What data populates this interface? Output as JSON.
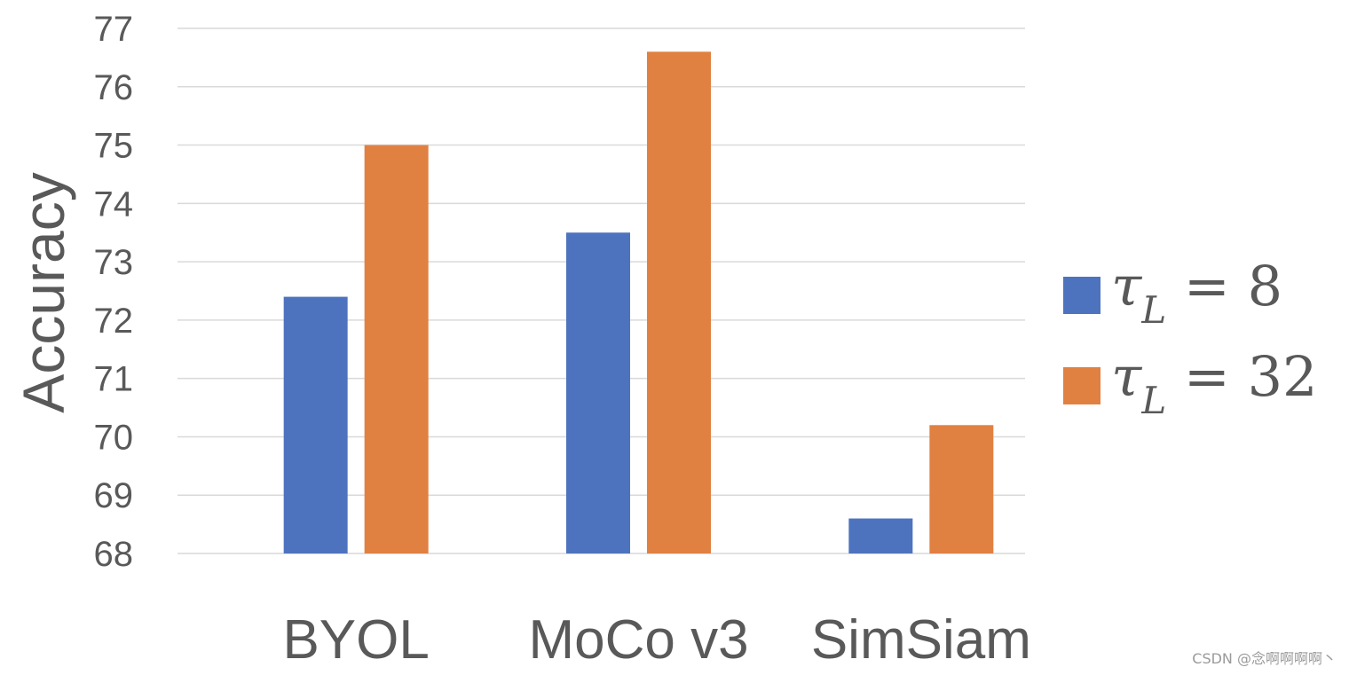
{
  "chart_data": {
    "type": "bar",
    "title": "",
    "xlabel": "",
    "ylabel": "Accuracy",
    "ylim": [
      68,
      77
    ],
    "yticks": [
      68,
      69,
      70,
      71,
      72,
      73,
      74,
      75,
      76,
      77
    ],
    "grid": true,
    "legend_position": "right",
    "categories": [
      "BYOL",
      "MoCo v3",
      "SimSiam"
    ],
    "series": [
      {
        "name": "τL = 8",
        "symbol": "τ",
        "subscript": "L",
        "rest": " = 8",
        "color": "#4e73be",
        "values": [
          72.4,
          73.5,
          68.6
        ]
      },
      {
        "name": "τL = 32",
        "symbol": "τ",
        "subscript": "L",
        "rest": " = 32",
        "color": "#e08142",
        "values": [
          75.0,
          76.6,
          70.2
        ]
      }
    ]
  },
  "watermark": "CSDN @念啊啊啊啊丶"
}
